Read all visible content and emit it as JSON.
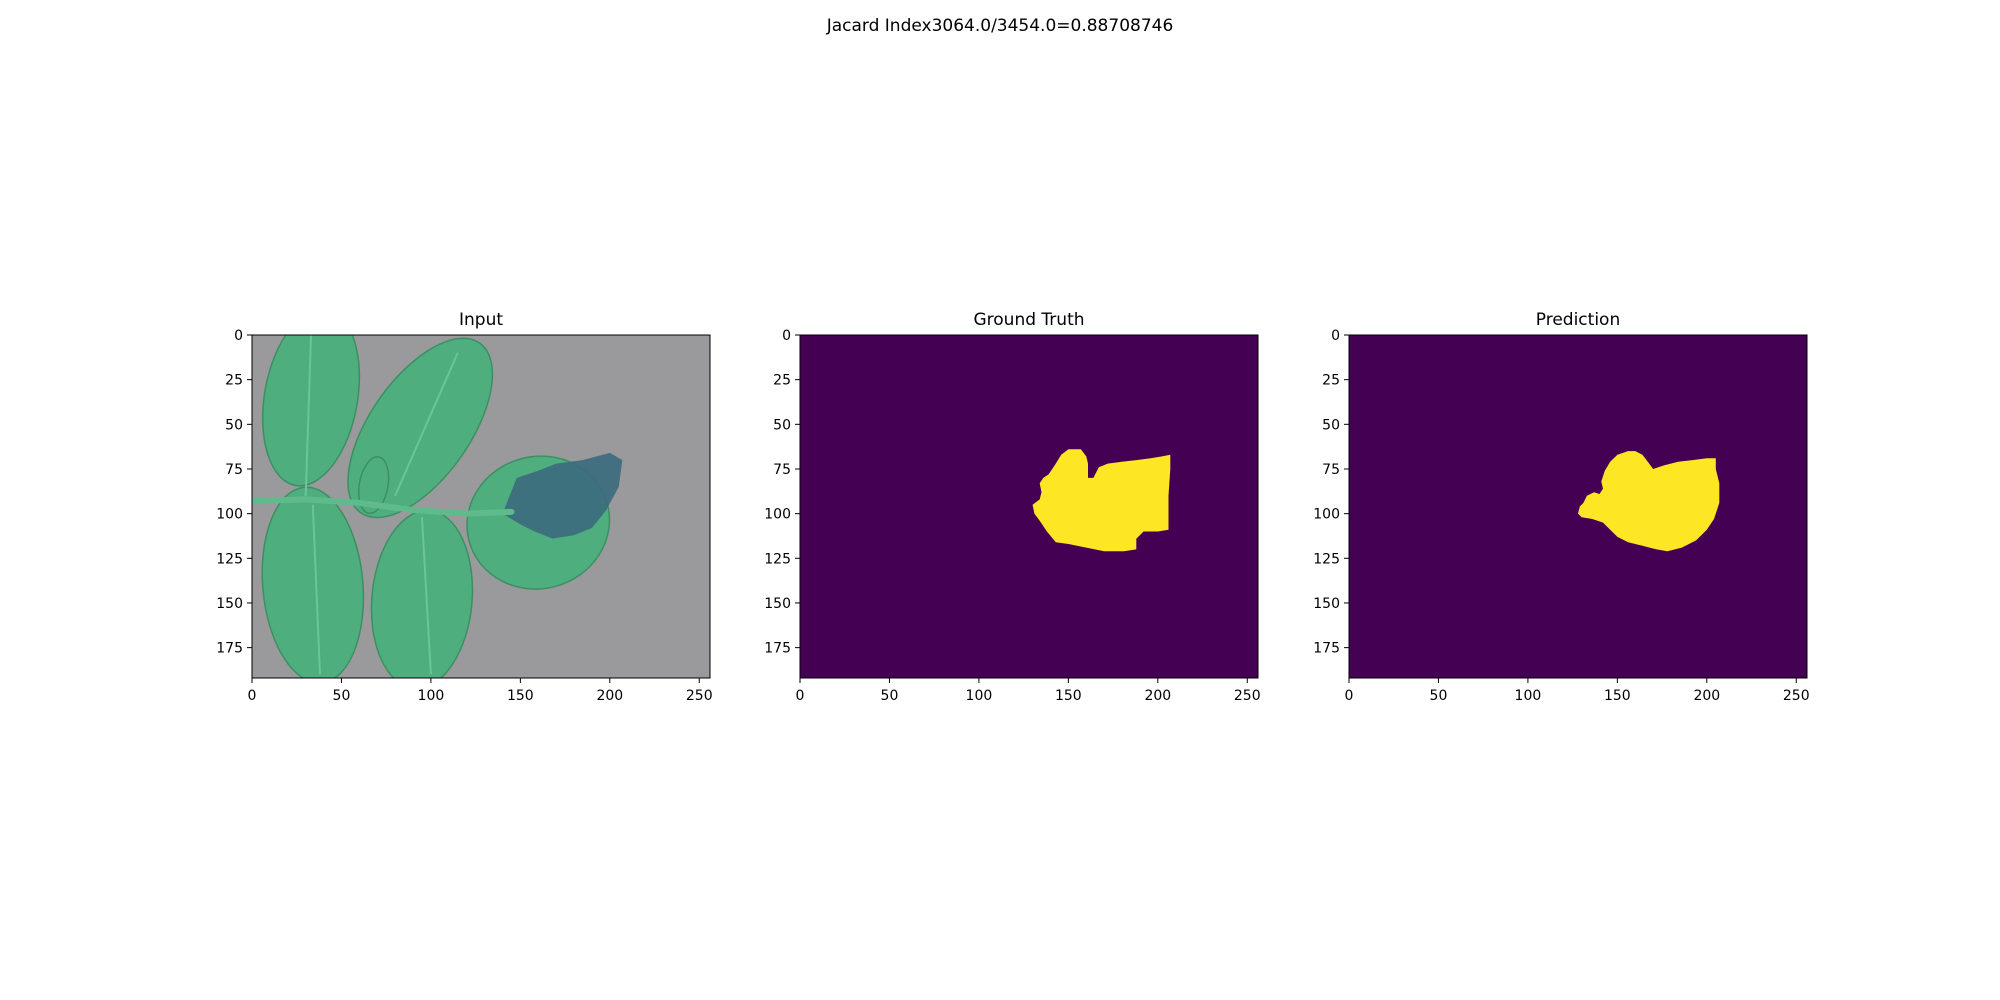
{
  "figure": {
    "suptitle": "Jacard Index3064.0/3454.0=0.88708746"
  },
  "colors": {
    "mask_background": "#440154",
    "mask_foreground": "#fde725",
    "photo_background": "#9a9a9c",
    "leaf": "#4fae7e",
    "leaf_dark": "#3c8f63",
    "lesion": "#3b6a7e"
  },
  "chart_data": [
    {
      "type": "heatmap",
      "title": "Input",
      "content": "RGB photo of a leaf with a dark lesion",
      "xlim": [
        0,
        256
      ],
      "ylim": [
        192,
        0
      ],
      "xticks": [
        0,
        50,
        100,
        150,
        200,
        250
      ],
      "yticks": [
        0,
        25,
        50,
        75,
        100,
        125,
        150,
        175
      ]
    },
    {
      "type": "heatmap",
      "title": "Ground Truth",
      "content": "binary mask",
      "xlim": [
        0,
        256
      ],
      "ylim": [
        192,
        0
      ],
      "xticks": [
        0,
        50,
        100,
        150,
        200,
        250
      ],
      "yticks": [
        0,
        25,
        50,
        75,
        100,
        125,
        150,
        175
      ],
      "mask_outline": [
        [
          130,
          95
        ],
        [
          134,
          92
        ],
        [
          135,
          88
        ],
        [
          134,
          83
        ],
        [
          136,
          80
        ],
        [
          139,
          78
        ],
        [
          143,
          72
        ],
        [
          146,
          67
        ],
        [
          150,
          64
        ],
        [
          157,
          64
        ],
        [
          160,
          68
        ],
        [
          161,
          72
        ],
        [
          161,
          80
        ],
        [
          164,
          80
        ],
        [
          167,
          74
        ],
        [
          172,
          72
        ],
        [
          180,
          71
        ],
        [
          188,
          70
        ],
        [
          196,
          69
        ],
        [
          202,
          68
        ],
        [
          207,
          67
        ],
        [
          207,
          75
        ],
        [
          206,
          90
        ],
        [
          206,
          109
        ],
        [
          200,
          110
        ],
        [
          192,
          110
        ],
        [
          188,
          114
        ],
        [
          188,
          120
        ],
        [
          181,
          121
        ],
        [
          170,
          121
        ],
        [
          160,
          119
        ],
        [
          150,
          117
        ],
        [
          143,
          116
        ],
        [
          138,
          110
        ],
        [
          134,
          104
        ],
        [
          131,
          100
        ]
      ]
    },
    {
      "type": "heatmap",
      "title": "Prediction",
      "content": "binary mask",
      "xlim": [
        0,
        256
      ],
      "ylim": [
        192,
        0
      ],
      "xticks": [
        0,
        50,
        100,
        150,
        200,
        250
      ],
      "yticks": [
        0,
        25,
        50,
        75,
        100,
        125,
        150,
        175
      ],
      "mask_outline": [
        [
          128,
          100
        ],
        [
          129,
          96
        ],
        [
          131,
          94
        ],
        [
          133,
          90
        ],
        [
          137,
          88
        ],
        [
          140,
          89
        ],
        [
          142,
          86
        ],
        [
          141,
          82
        ],
        [
          143,
          76
        ],
        [
          146,
          71
        ],
        [
          150,
          67
        ],
        [
          156,
          65
        ],
        [
          160,
          65
        ],
        [
          164,
          67
        ],
        [
          167,
          71
        ],
        [
          170,
          75
        ],
        [
          176,
          73
        ],
        [
          184,
          71
        ],
        [
          192,
          70
        ],
        [
          200,
          69
        ],
        [
          205,
          69
        ],
        [
          205,
          75
        ],
        [
          207,
          83
        ],
        [
          207,
          94
        ],
        [
          204,
          103
        ],
        [
          200,
          109
        ],
        [
          194,
          115
        ],
        [
          186,
          119
        ],
        [
          178,
          121
        ],
        [
          172,
          120
        ],
        [
          164,
          118
        ],
        [
          156,
          116
        ],
        [
          150,
          113
        ],
        [
          146,
          109
        ],
        [
          142,
          105
        ],
        [
          136,
          103
        ],
        [
          130,
          102
        ]
      ]
    }
  ]
}
